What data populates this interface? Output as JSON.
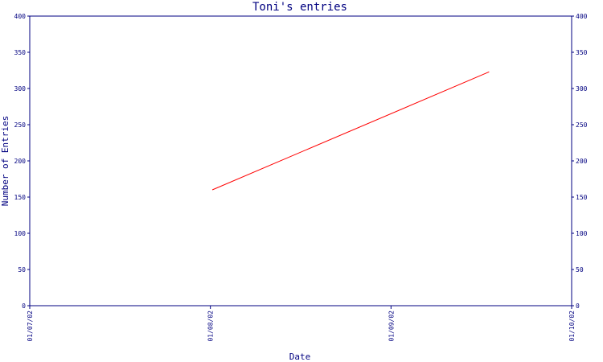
{
  "chart_data": {
    "type": "line",
    "title": "Toni's entries",
    "xlabel": "Date",
    "ylabel": "Number of Entries",
    "x_tick_labels": [
      "01/07/02",
      "01/08/02",
      "01/09/02",
      "01/10/02"
    ],
    "x_range": [
      "2002-07-01",
      "2002-10-01"
    ],
    "ylim": [
      0,
      400
    ],
    "y_ticks": [
      0,
      50,
      100,
      150,
      200,
      250,
      300,
      350,
      400
    ],
    "y_ticks_right": true,
    "grid": false,
    "series": [
      {
        "color": "#ff0000",
        "points": [
          {
            "x": "2002-08-01",
            "y": 160
          },
          {
            "x": "2002-09-17",
            "y": 323
          }
        ]
      }
    ]
  }
}
